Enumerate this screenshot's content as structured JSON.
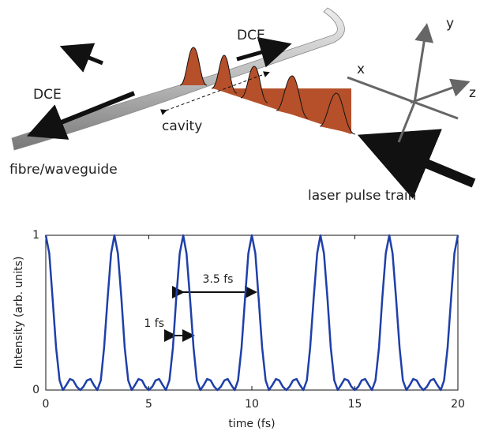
{
  "diagram": {
    "labels": {
      "dce_left": "DCE",
      "dce_top": "DCE",
      "cavity": "cavity",
      "fibre": "fibre/waveguide",
      "laser": "laser pulse train",
      "axis_x": "x",
      "axis_y": "y",
      "axis_z": "z"
    }
  },
  "chart_data": {
    "type": "line",
    "x_label": "time (fs)",
    "y_label": "Intensity (arb. units)",
    "annotations": [
      "3.5 fs",
      "1 fs"
    ],
    "xlim": [
      0,
      20
    ],
    "ylim": [
      0,
      1
    ],
    "xticks": [
      0,
      5,
      10,
      15,
      20
    ],
    "yticks": [
      0,
      1
    ],
    "x": [
      0,
      0.17,
      0.33,
      0.5,
      0.67,
      0.83,
      1,
      1.17,
      1.33,
      1.5,
      1.67,
      1.83,
      2,
      2.17,
      2.33,
      2.5,
      2.67,
      2.83,
      3,
      3.17,
      3.33,
      3.5,
      3.67,
      3.83,
      4,
      4.17,
      4.33,
      4.5,
      4.67,
      4.83,
      5,
      5.17,
      5.33,
      5.5,
      5.67,
      5.83,
      6,
      6.17,
      6.33,
      6.5,
      6.67,
      6.83,
      7,
      7.17,
      7.33,
      7.5,
      7.67,
      7.83,
      8,
      8.17,
      8.33,
      8.5,
      8.67,
      8.83,
      9,
      9.17,
      9.33,
      9.5,
      9.67,
      9.83,
      10,
      10.17,
      10.33,
      10.5,
      10.67,
      10.83,
      11,
      11.17,
      11.33,
      11.5,
      11.67,
      11.83,
      12,
      12.17,
      12.33,
      12.5,
      12.67,
      12.83,
      13,
      13.17,
      13.33,
      13.5,
      13.67,
      13.83,
      14,
      14.17,
      14.33,
      14.5,
      14.67,
      14.83,
      15,
      15.17,
      15.33,
      15.5,
      15.67,
      15.83,
      16,
      16.17,
      16.33,
      16.5,
      16.67,
      16.83,
      17,
      17.17,
      17.33,
      17.5,
      17.67,
      17.83,
      18,
      18.17,
      18.33,
      18.5,
      18.67,
      18.83,
      19,
      19.17,
      19.33,
      19.5,
      19.67,
      19.83,
      20
    ],
    "series": [
      {
        "color": "#1f3fa8",
        "values": [
          1,
          0.8825,
          0.592,
          0.2743,
          0.0625,
          0,
          0.033,
          0.0712,
          0.0625,
          0.0221,
          0,
          0.0221,
          0.0625,
          0.0712,
          0.033,
          0,
          0.0625,
          0.2743,
          0.592,
          0.8825,
          1,
          0.8825,
          0.592,
          0.2743,
          0.0625,
          0,
          0.033,
          0.0712,
          0.0625,
          0.0221,
          0,
          0.0221,
          0.0625,
          0.0712,
          0.033,
          0,
          0.0625,
          0.2743,
          0.592,
          0.8825,
          1,
          0.8825,
          0.592,
          0.2743,
          0.0625,
          0,
          0.033,
          0.0712,
          0.0625,
          0.0221,
          0,
          0.0221,
          0.0625,
          0.0712,
          0.033,
          0,
          0.0625,
          0.2743,
          0.592,
          0.8825,
          1,
          0.8825,
          0.592,
          0.2743,
          0.0625,
          0,
          0.033,
          0.0712,
          0.0625,
          0.0221,
          0,
          0.0221,
          0.0625,
          0.0712,
          0.033,
          0,
          0.0625,
          0.2743,
          0.592,
          0.8825,
          1,
          0.8825,
          0.592,
          0.2743,
          0.0625,
          0,
          0.033,
          0.0712,
          0.0625,
          0.0221,
          0,
          0.0221,
          0.0625,
          0.0712,
          0.033,
          0,
          0.0625,
          0.2743,
          0.592,
          0.8825,
          1,
          0.8825,
          0.592,
          0.2743,
          0.0625,
          0,
          0.033,
          0.0712,
          0.0625,
          0.0221,
          0,
          0.0221,
          0.0625,
          0.0712,
          0.033,
          0,
          0.0625,
          0.2743,
          0.592,
          0.8825,
          1
        ]
      }
    ]
  }
}
